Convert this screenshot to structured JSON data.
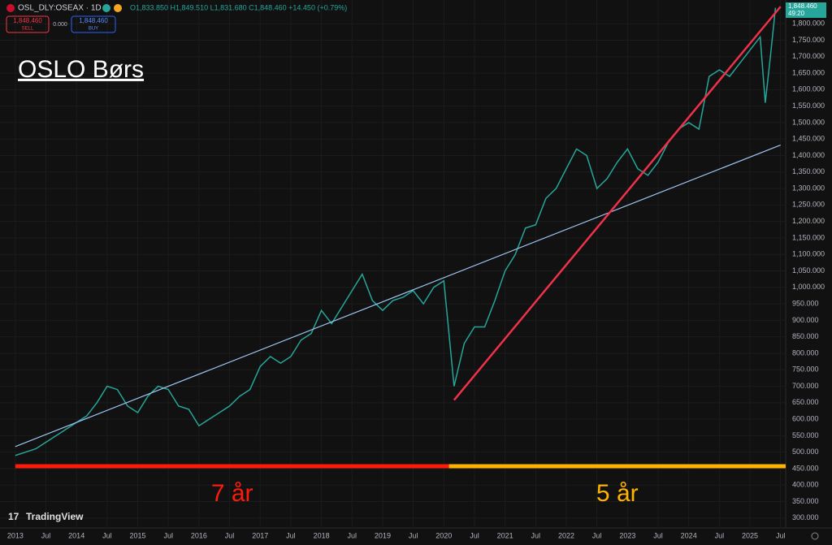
{
  "header": {
    "symbol": "OSL_DLY:OSEAX · 1D",
    "ohlc": "O1,833.850 H1,849.510 L1,831.680 C1,848.460 +14.450 (+0.79%)",
    "sell_price": "1,848.460",
    "sell": "SELL",
    "spread": "0.000",
    "buy_price": "1,848.460",
    "buy": "BUY",
    "last_price": "1,848.460",
    "countdown": "49:20",
    "brand": "TradingView"
  },
  "chart_data": {
    "type": "line",
    "title": "OSLO Børs",
    "color": "#26a69a",
    "grid": true,
    "x": [
      "2013-01",
      "2013-03",
      "2013-05",
      "2013-07",
      "2013-09",
      "2013-11",
      "2014-01",
      "2014-03",
      "2014-05",
      "2014-07",
      "2014-09",
      "2014-11",
      "2015-01",
      "2015-03",
      "2015-05",
      "2015-07",
      "2015-09",
      "2015-11",
      "2016-01",
      "2016-03",
      "2016-05",
      "2016-07",
      "2016-09",
      "2016-11",
      "2017-01",
      "2017-03",
      "2017-05",
      "2017-07",
      "2017-09",
      "2017-11",
      "2018-01",
      "2018-03",
      "2018-05",
      "2018-07",
      "2018-09",
      "2018-11",
      "2019-01",
      "2019-03",
      "2019-05",
      "2019-07",
      "2019-09",
      "2019-11",
      "2020-01",
      "2020-03",
      "2020-05",
      "2020-07",
      "2020-09",
      "2020-11",
      "2021-01",
      "2021-03",
      "2021-05",
      "2021-07",
      "2021-09",
      "2021-11",
      "2022-01",
      "2022-03",
      "2022-05",
      "2022-07",
      "2022-09",
      "2022-11",
      "2023-01",
      "2023-03",
      "2023-05",
      "2023-07",
      "2023-09",
      "2023-11",
      "2024-01",
      "2024-03",
      "2024-05",
      "2024-07",
      "2024-09",
      "2024-11",
      "2025-01",
      "2025-03",
      "2025-04",
      "2025-05",
      "2025-06"
    ],
    "values": [
      490,
      500,
      510,
      530,
      550,
      570,
      590,
      610,
      650,
      700,
      690,
      640,
      620,
      670,
      700,
      690,
      640,
      630,
      580,
      600,
      620,
      640,
      670,
      690,
      760,
      790,
      770,
      790,
      840,
      860,
      930,
      890,
      940,
      990,
      1040,
      960,
      930,
      960,
      970,
      990,
      950,
      1000,
      1020,
      700,
      830,
      880,
      880,
      960,
      1050,
      1100,
      1180,
      1190,
      1270,
      1300,
      1360,
      1420,
      1400,
      1300,
      1330,
      1380,
      1420,
      1360,
      1340,
      1380,
      1440,
      1480,
      1500,
      1480,
      1640,
      1660,
      1640,
      1680,
      1720,
      1760,
      1560,
      1700,
      1848.46
    ],
    "xlim": [
      "2012-10",
      "2025-08"
    ],
    "xticks": [
      {
        "value": "2013-01",
        "label": "2013"
      },
      {
        "value": "2013-07",
        "label": "Jul"
      },
      {
        "value": "2014-01",
        "label": "2014"
      },
      {
        "value": "2014-07",
        "label": "Jul"
      },
      {
        "value": "2015-01",
        "label": "2015"
      },
      {
        "value": "2015-07",
        "label": "Jul"
      },
      {
        "value": "2016-01",
        "label": "2016"
      },
      {
        "value": "2016-07",
        "label": "Jul"
      },
      {
        "value": "2017-01",
        "label": "2017"
      },
      {
        "value": "2017-07",
        "label": "Jul"
      },
      {
        "value": "2018-01",
        "label": "2018"
      },
      {
        "value": "2018-07",
        "label": "Jul"
      },
      {
        "value": "2019-01",
        "label": "2019"
      },
      {
        "value": "2019-07",
        "label": "Jul"
      },
      {
        "value": "2020-01",
        "label": "2020"
      },
      {
        "value": "2020-07",
        "label": "Jul"
      },
      {
        "value": "2021-01",
        "label": "2021"
      },
      {
        "value": "2021-07",
        "label": "Jul"
      },
      {
        "value": "2022-01",
        "label": "2022"
      },
      {
        "value": "2022-07",
        "label": "Jul"
      },
      {
        "value": "2023-01",
        "label": "2023"
      },
      {
        "value": "2023-07",
        "label": "Jul"
      },
      {
        "value": "2024-01",
        "label": "2024"
      },
      {
        "value": "2024-07",
        "label": "Jul"
      },
      {
        "value": "2025-01",
        "label": "2025"
      },
      {
        "value": "2025-07",
        "label": "Jul"
      }
    ],
    "ylim": [
      270,
      1872
    ],
    "yticks": [
      {
        "value": 300,
        "label": "300.000"
      },
      {
        "value": 350,
        "label": "350.000"
      },
      {
        "value": 400,
        "label": "400.000"
      },
      {
        "value": 450,
        "label": "450.000"
      },
      {
        "value": 500,
        "label": "500.000"
      },
      {
        "value": 550,
        "label": "550.000"
      },
      {
        "value": 600,
        "label": "600.000"
      },
      {
        "value": 650,
        "label": "650.000"
      },
      {
        "value": 700,
        "label": "700.000"
      },
      {
        "value": 750,
        "label": "750.000"
      },
      {
        "value": 800,
        "label": "800.000"
      },
      {
        "value": 850,
        "label": "850.000"
      },
      {
        "value": 900,
        "label": "900.000"
      },
      {
        "value": 950,
        "label": "950.000"
      },
      {
        "value": 1000,
        "label": "1,000.000"
      },
      {
        "value": 1050,
        "label": "1,050.000"
      },
      {
        "value": 1100,
        "label": "1,100.000"
      },
      {
        "value": 1150,
        "label": "1,150.000"
      },
      {
        "value": 1200,
        "label": "1,200.000"
      },
      {
        "value": 1250,
        "label": "1,250.000"
      },
      {
        "value": 1300,
        "label": "1,300.000"
      },
      {
        "value": 1350,
        "label": "1,350.000"
      },
      {
        "value": 1400,
        "label": "1,400.000"
      },
      {
        "value": 1450,
        "label": "1,450.000"
      },
      {
        "value": 1500,
        "label": "1,500.000"
      },
      {
        "value": 1550,
        "label": "1,550.000"
      },
      {
        "value": 1600,
        "label": "1,600.000"
      },
      {
        "value": 1650,
        "label": "1,650.000"
      },
      {
        "value": 1700,
        "label": "1,700.000"
      },
      {
        "value": 1750,
        "label": "1,750.000"
      },
      {
        "value": 1800,
        "label": "1,800.000"
      }
    ],
    "trendlines": [
      {
        "color": "#9ec5f0",
        "x": [
          "2013-01",
          "2025-07"
        ],
        "y": [
          517,
          1432
        ]
      },
      {
        "color": "#f0314a",
        "x": [
          "2020-03",
          "2025-07"
        ],
        "y": [
          658,
          1852
        ]
      }
    ],
    "periods": [
      {
        "label": "7 år",
        "start": "2013-01",
        "end": "2020-02",
        "color": "#ff1a0a"
      },
      {
        "label": "5 år",
        "start": "2020-02",
        "end": "2025-08",
        "color": "#ffb300"
      }
    ]
  }
}
